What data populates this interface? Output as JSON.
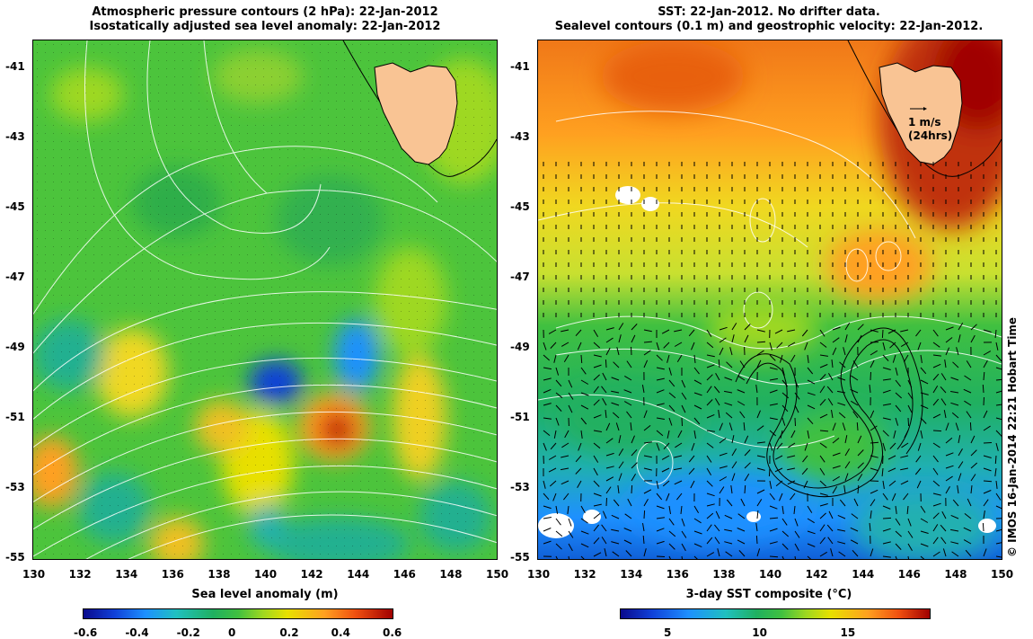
{
  "left": {
    "title_line1": "Atmospheric pressure contours (2 hPa): 22-Jan-2012",
    "title_line2": "Isostatically adjusted sea level anomaly: 22-Jan-2012",
    "colorbar_label": "Sea level anomaly (m)",
    "colorbar_ticks": [
      "-0.6",
      "-0.4",
      "-0.2",
      "0",
      "0.2",
      "0.4",
      "0.6"
    ]
  },
  "right": {
    "title_line1": "SST: 22-Jan-2012. No drifter data.",
    "title_line2": "Sealevel contours (0.1 m) and geostrophic velocity: 22-Jan-2012.",
    "colorbar_label": "3-day SST composite (°C)",
    "colorbar_ticks": [
      "5",
      "10",
      "15"
    ],
    "velocity_scale_line1": "1 m/s",
    "velocity_scale_line2": "(24hrs)"
  },
  "axes": {
    "lon_ticks": [
      "130",
      "132",
      "134",
      "136",
      "138",
      "140",
      "142",
      "144",
      "146",
      "148",
      "150"
    ],
    "lat_ticks": [
      "-41",
      "-43",
      "-45",
      "-47",
      "-49",
      "-51",
      "-53",
      "-55"
    ],
    "lon_range": [
      130,
      150
    ],
    "lat_range": [
      -55,
      -40.2
    ]
  },
  "credit": "© IMOS 16-Jan-2014 22:21 Hobart Time",
  "colors": {
    "land": "#f9c494",
    "contour_white": "#ffffff",
    "contour_black": "#000000"
  }
}
